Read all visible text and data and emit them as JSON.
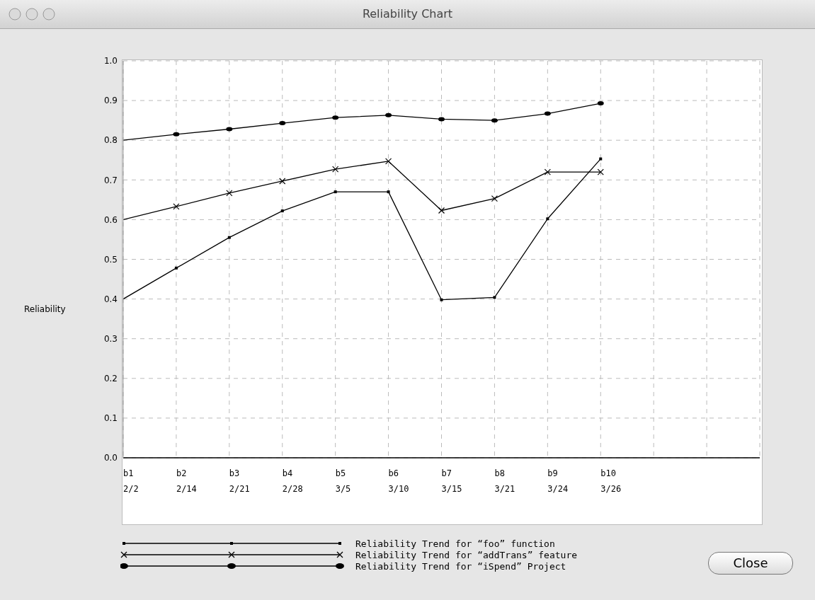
{
  "chart_data": {
    "type": "line",
    "title": "Reliability Chart",
    "ylabel": "Reliability",
    "categories": [
      "b1\n2/2",
      "b2\n2/14",
      "b3\n2/21",
      "b4\n2/28",
      "b5\n3/5",
      "b6\n3/10",
      "b7\n3/15",
      "b8\n3/21",
      "b9\n3/24",
      "b10\n3/26",
      null,
      null,
      null
    ],
    "series": [
      {
        "name": "Reliability Trend for “foo” function",
        "color": "#000000",
        "marker": "square",
        "values": [
          0.4,
          0.478,
          0.555,
          0.622,
          0.67,
          0.67,
          0.398,
          0.404,
          0.602,
          0.753,
          null,
          null,
          null
        ]
      },
      {
        "name": "Reliability Trend for “addTrans” feature",
        "color": "#000000",
        "marker": "cross",
        "values": [
          0.6,
          0.633,
          0.667,
          0.697,
          0.727,
          0.747,
          0.623,
          0.653,
          0.72,
          0.72,
          null,
          null,
          null
        ]
      },
      {
        "name": "Reliability Trend for “iSpend” Project",
        "color": "#000000",
        "marker": "circle",
        "values": [
          0.8,
          0.815,
          0.828,
          0.843,
          0.857,
          0.863,
          0.853,
          0.85,
          0.867,
          0.893,
          null,
          null,
          null
        ]
      }
    ],
    "ylim": [
      0,
      1
    ],
    "yticks": [
      {
        "value": 0,
        "label": "0.0"
      },
      {
        "value": 0.1,
        "label": "0.1"
      },
      {
        "value": 0.2,
        "label": "0.2"
      },
      {
        "value": 0.3,
        "label": "0.3"
      },
      {
        "value": 0.4,
        "label": "0.4"
      },
      {
        "value": 0.5,
        "label": "0.5"
      },
      {
        "value": 0.6,
        "label": "0.6"
      },
      {
        "value": 0.7,
        "label": "0.7"
      },
      {
        "value": 0.8,
        "label": "0.8"
      },
      {
        "value": 0.9,
        "label": "0.9"
      },
      {
        "value": 1,
        "label": "1.0"
      }
    ],
    "grid": true,
    "legend": "bottom",
    "line_style": "solid",
    "annotations": [
      "Close"
    ]
  }
}
